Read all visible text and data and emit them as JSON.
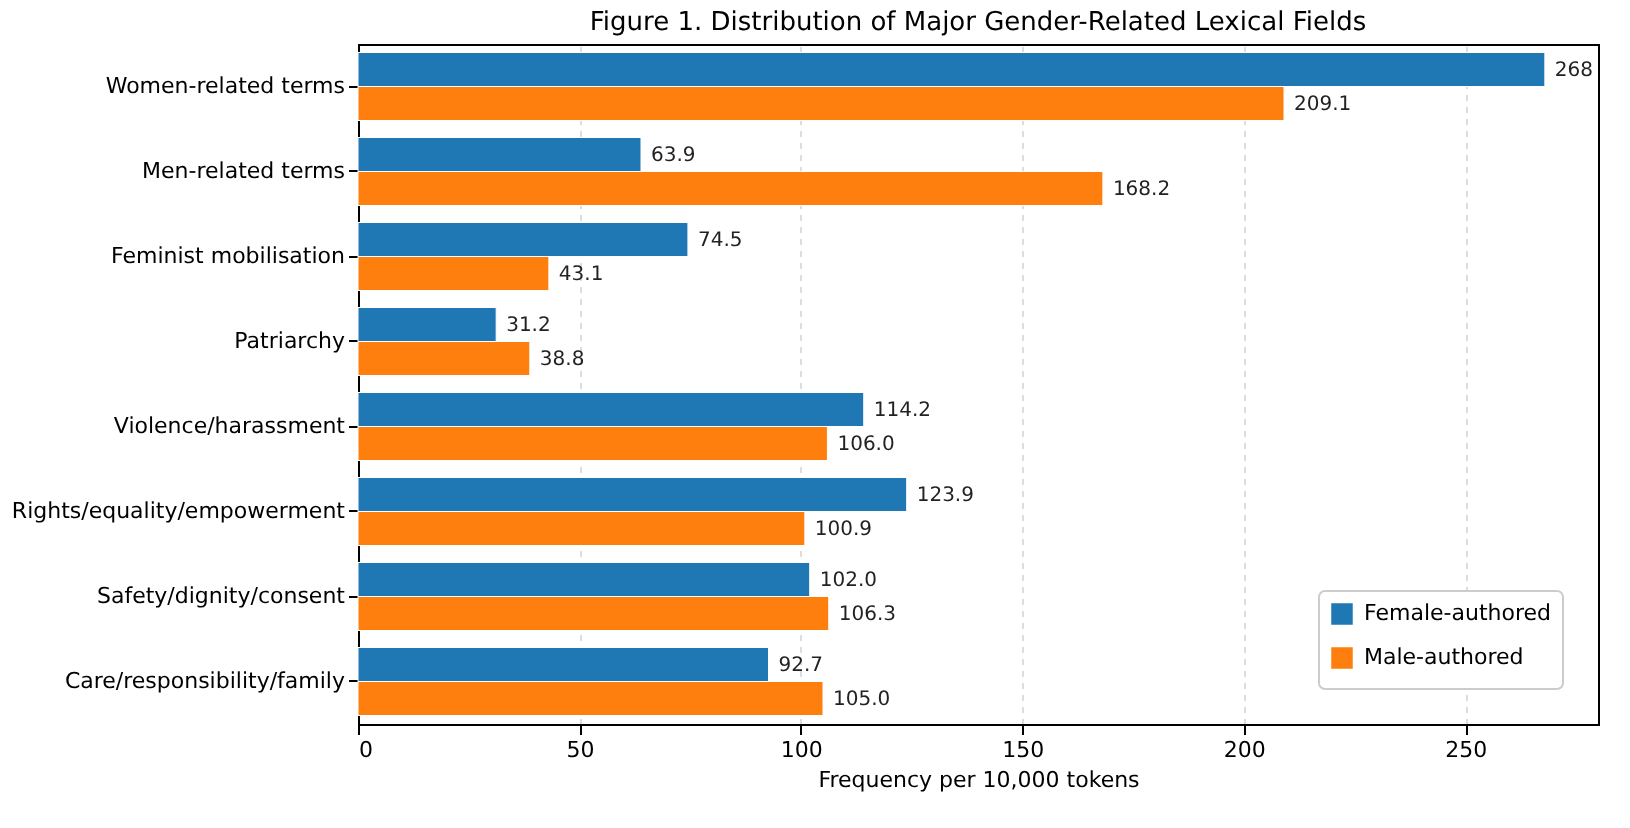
{
  "chart_data": {
    "type": "bar",
    "orientation": "horizontal",
    "title": "Figure 1. Distribution of Major Gender-Related Lexical Fields",
    "xlabel": "Frequency per 10,000 tokens",
    "categories": [
      "Women-related terms",
      "Men-related terms",
      "Feminist mobilisation",
      "Patriarchy",
      "Violence/harassment",
      "Rights/equality/empowerment",
      "Safety/dignity/consent",
      "Care/responsibility/family"
    ],
    "series": [
      {
        "name": "Female-authored",
        "color": "#1f77b4",
        "values": [
          268,
          63.9,
          74.5,
          31.2,
          114.2,
          123.9,
          102.0,
          92.7
        ],
        "value_labels": [
          "268",
          "63.9",
          "74.5",
          "31.2",
          "114.2",
          "123.9",
          "102.0",
          "92.7"
        ]
      },
      {
        "name": "Male-authored",
        "color": "#ff7f0e",
        "values": [
          209.1,
          168.2,
          43.1,
          38.8,
          106.0,
          100.9,
          106.3,
          105.0
        ],
        "value_labels": [
          "209.1",
          "168.2",
          "43.1",
          "38.8",
          "106.0",
          "100.9",
          "106.3",
          "105.0"
        ]
      }
    ],
    "xlim": [
      0,
      280
    ],
    "xticks": [
      0,
      50,
      100,
      150,
      200,
      250
    ],
    "grid": "x",
    "legend": "bottom right"
  }
}
